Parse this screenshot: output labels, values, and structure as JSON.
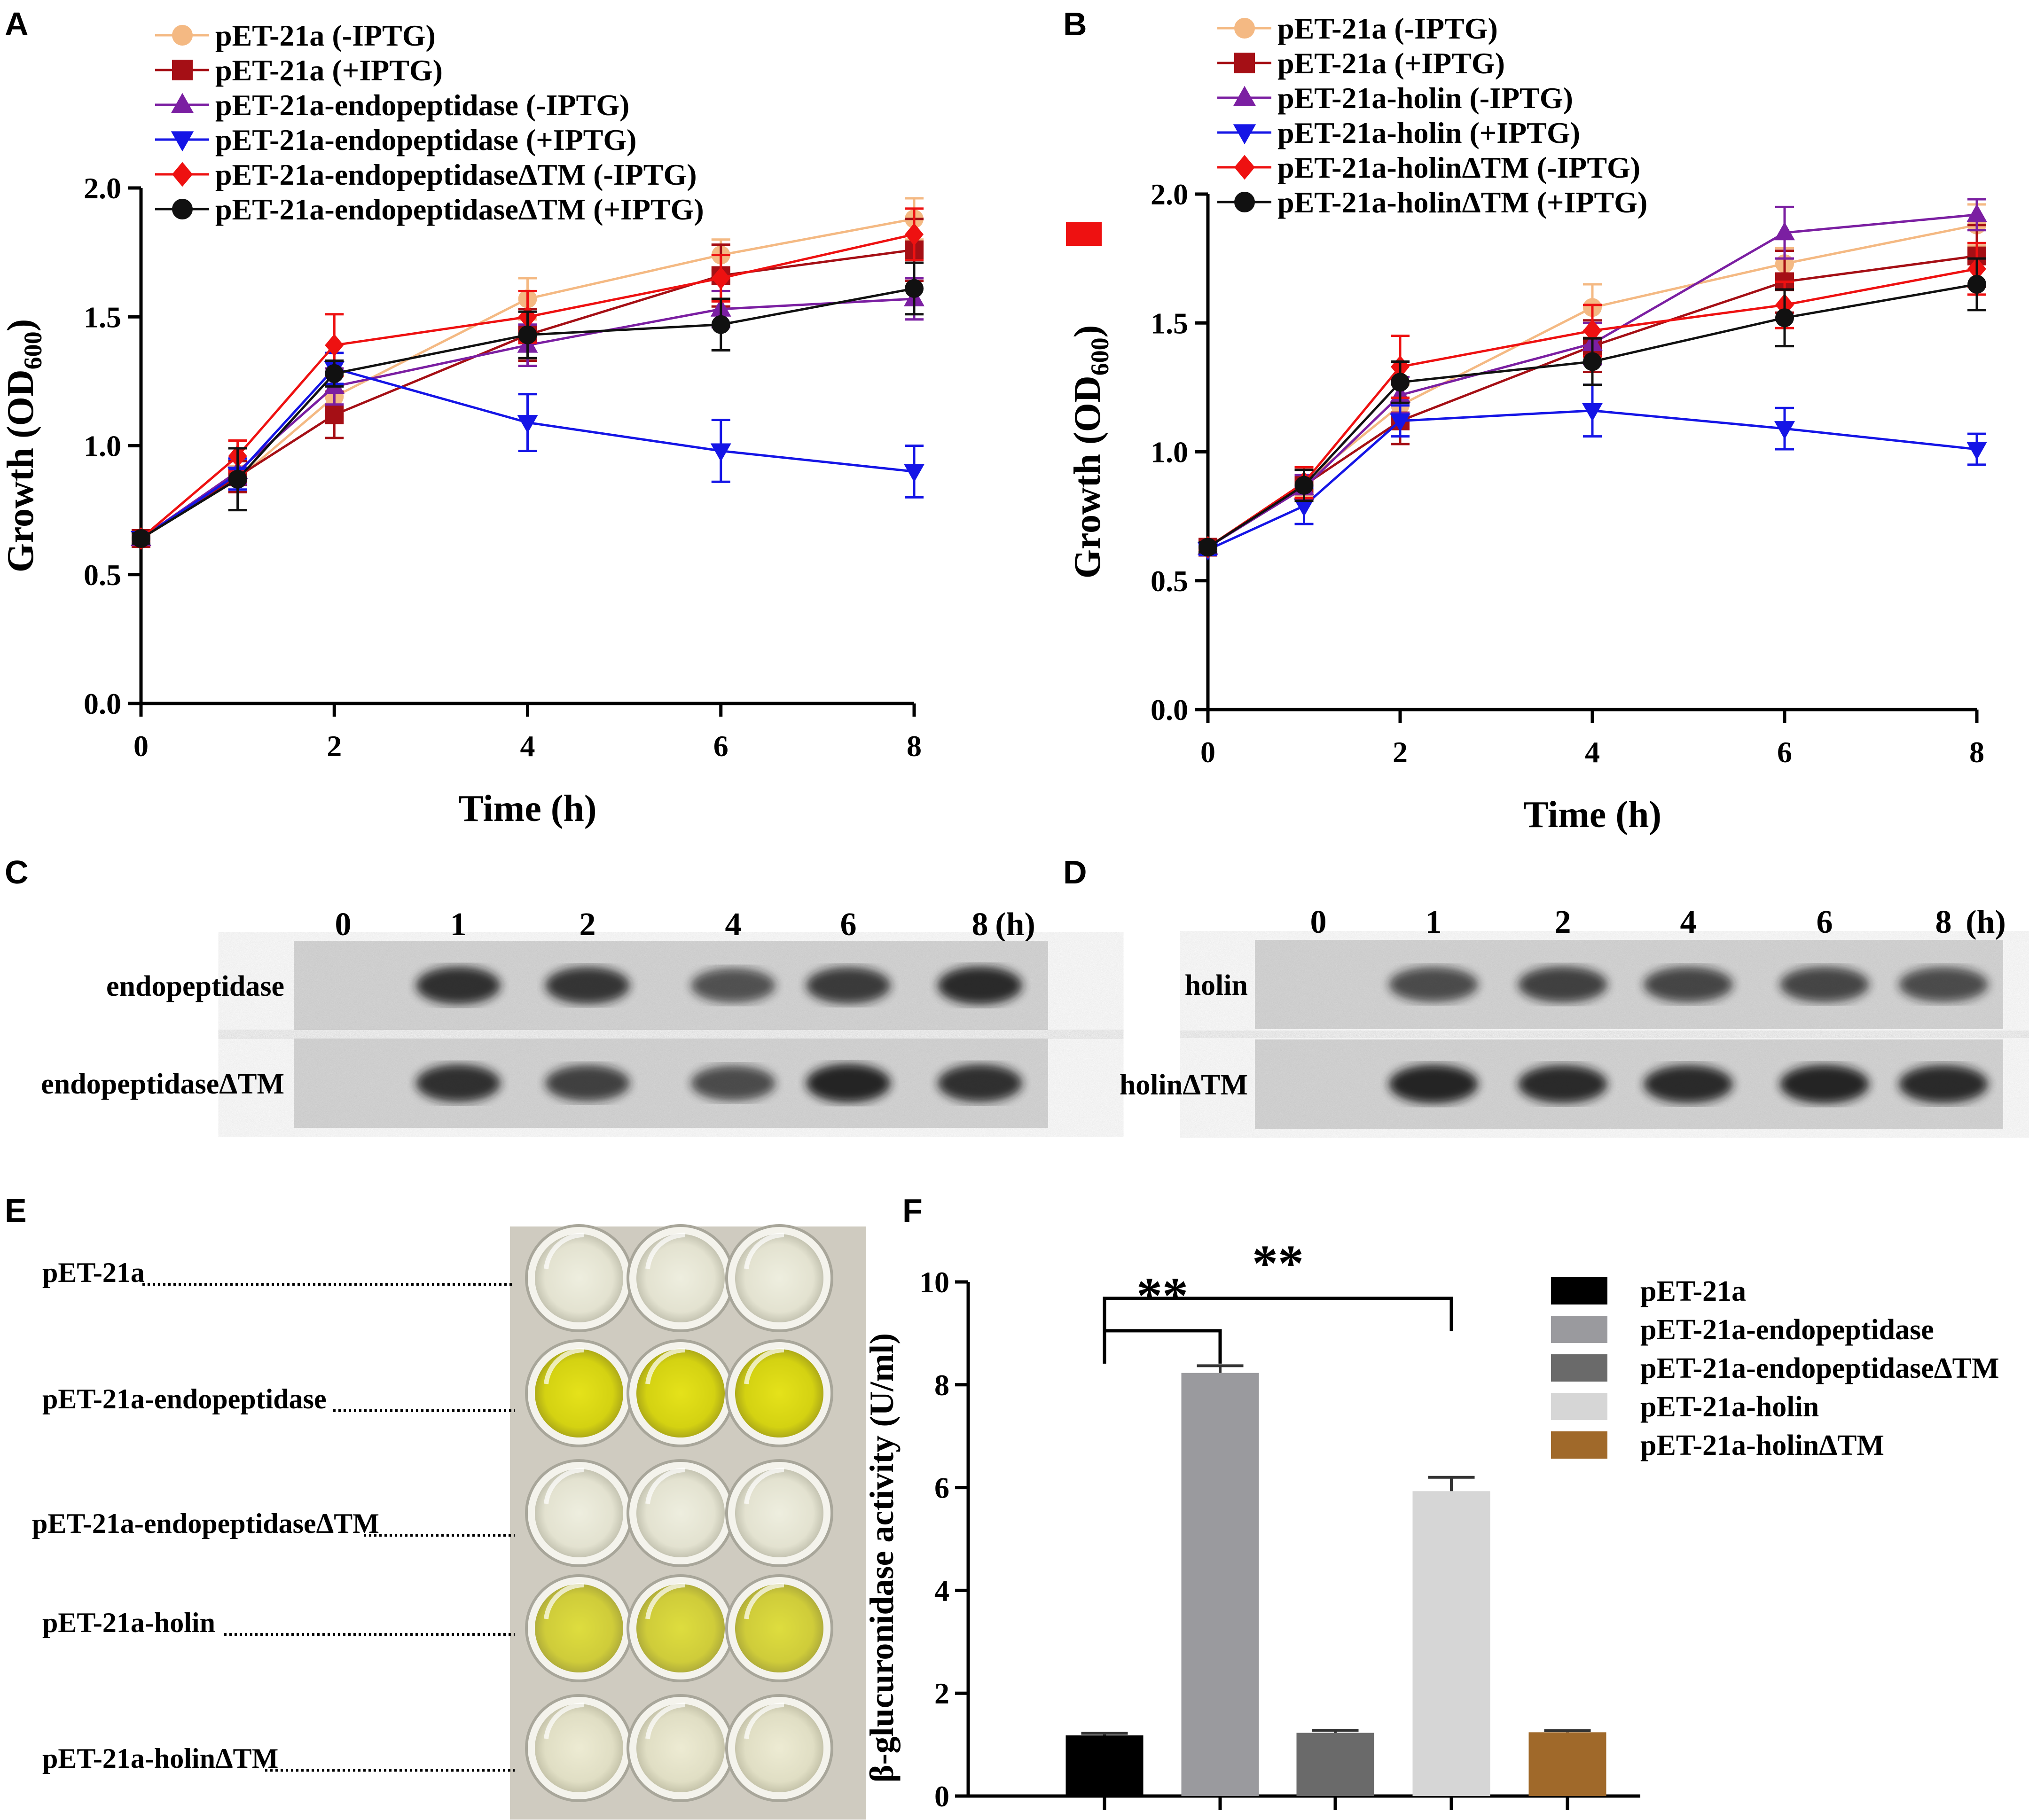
{
  "panel_labels": {
    "a": "A",
    "b": "B",
    "c": "C",
    "d": "D",
    "e": "E",
    "f": "F"
  },
  "colors": {
    "peach": "#F4B983",
    "darkred": "#A50F15",
    "purple": "#7B1FA2",
    "blue": "#1515E6",
    "red": "#EE1111",
    "black": "#111111",
    "bar_black": "#000000",
    "bar_gray": "#9A9A9E",
    "bar_dark": "#6A6A6A",
    "bar_light": "#D6D6D6",
    "bar_brown": "#A0692A",
    "red_square": "#EE1111"
  },
  "chart_data": [
    {
      "id": "A",
      "type": "line",
      "xlabel": "Time (h)",
      "ylabel_main": "Growth (OD",
      "ylabel_sub": "600",
      "ylabel_close": ")",
      "xlim": [
        0,
        8
      ],
      "ylim": [
        0,
        2
      ],
      "xticks": [
        "0",
        "2",
        "4",
        "6",
        "8"
      ],
      "yticks": [
        "0.0",
        "0.5",
        "1.0",
        "1.5",
        "2.0"
      ],
      "x": [
        0,
        1,
        2,
        4,
        6,
        8
      ],
      "series": [
        {
          "name": "pET-21a (-IPTG)",
          "color": "#F4B983",
          "marker": "circle",
          "values": [
            0.64,
            0.87,
            1.19,
            1.57,
            1.74,
            1.88
          ],
          "err": [
            0.02,
            0.05,
            0.08,
            0.08,
            0.06,
            0.08
          ]
        },
        {
          "name": "pET-21a (+IPTG)",
          "color": "#A50F15",
          "marker": "square",
          "values": [
            0.64,
            0.88,
            1.12,
            1.43,
            1.66,
            1.76
          ],
          "err": [
            0.02,
            0.06,
            0.09,
            0.1,
            0.12,
            0.12
          ]
        },
        {
          "name": "pET-21a-endopeptidase (-IPTG)",
          "color": "#7B1FA2",
          "marker": "triangle-up",
          "values": [
            0.64,
            0.9,
            1.23,
            1.39,
            1.53,
            1.57
          ],
          "err": [
            0.02,
            0.05,
            0.07,
            0.08,
            0.07,
            0.08
          ]
        },
        {
          "name": "pET-21a-endopeptidase (+IPTG)",
          "color": "#1515E6",
          "marker": "triangle-down",
          "values": [
            0.64,
            0.89,
            1.3,
            1.09,
            0.98,
            0.9
          ],
          "err": [
            0.02,
            0.06,
            0.06,
            0.11,
            0.12,
            0.1
          ]
        },
        {
          "name": "pET-21a-endopeptidaseΔTM (-IPTG)",
          "color": "#EE1111",
          "marker": "diamond",
          "values": [
            0.64,
            0.96,
            1.39,
            1.5,
            1.65,
            1.82
          ],
          "err": [
            0.02,
            0.06,
            0.12,
            0.1,
            0.09,
            0.1
          ]
        },
        {
          "name": "pET-21a-endopeptidaseΔTM (+IPTG)",
          "color": "#111111",
          "marker": "circle",
          "values": [
            0.64,
            0.87,
            1.28,
            1.43,
            1.47,
            1.61
          ],
          "err": [
            0.02,
            0.12,
            0.05,
            0.09,
            0.1,
            0.1
          ]
        }
      ]
    },
    {
      "id": "B",
      "type": "line",
      "xlabel": "Time (h)",
      "ylabel_main": "Growth (OD",
      "ylabel_sub": "600",
      "ylabel_close": ")",
      "xlim": [
        0,
        8
      ],
      "ylim": [
        0,
        2
      ],
      "xticks": [
        "0",
        "2",
        "4",
        "6",
        "8"
      ],
      "yticks": [
        "0.0",
        "0.5",
        "1.0",
        "1.5",
        "2.0"
      ],
      "x": [
        0,
        1,
        2,
        4,
        6,
        8
      ],
      "series": [
        {
          "name": "pET-21a (-IPTG)",
          "color": "#F4B983",
          "marker": "circle",
          "values": [
            0.63,
            0.88,
            1.18,
            1.56,
            1.73,
            1.88
          ],
          "err": [
            0.02,
            0.05,
            0.08,
            0.09,
            0.06,
            0.08
          ]
        },
        {
          "name": "pET-21a (+IPTG)",
          "color": "#A50F15",
          "marker": "square",
          "values": [
            0.63,
            0.87,
            1.12,
            1.41,
            1.66,
            1.76
          ],
          "err": [
            0.02,
            0.06,
            0.09,
            0.1,
            0.12,
            0.12
          ]
        },
        {
          "name": "pET-21a-holin (-IPTG)",
          "color": "#7B1FA2",
          "marker": "triangle-up",
          "values": [
            0.63,
            0.86,
            1.22,
            1.42,
            1.85,
            1.92
          ],
          "err": [
            0.02,
            0.05,
            0.07,
            0.08,
            0.1,
            0.06
          ]
        },
        {
          "name": "pET-21a-holin (+IPTG)",
          "color": "#1515E6",
          "marker": "triangle-down",
          "values": [
            0.62,
            0.79,
            1.12,
            1.16,
            1.09,
            1.01
          ],
          "err": [
            0.02,
            0.07,
            0.06,
            0.1,
            0.08,
            0.06
          ]
        },
        {
          "name": "pET-21a-holinΔTM (-IPTG)",
          "color": "#EE1111",
          "marker": "diamond",
          "values": [
            0.63,
            0.88,
            1.33,
            1.47,
            1.57,
            1.71
          ],
          "err": [
            0.02,
            0.06,
            0.12,
            0.1,
            0.09,
            0.1
          ]
        },
        {
          "name": "pET-21a-holinΔTM (+IPTG)",
          "color": "#111111",
          "marker": "circle",
          "values": [
            0.63,
            0.87,
            1.27,
            1.35,
            1.52,
            1.65
          ],
          "err": [
            0.02,
            0.06,
            0.08,
            0.09,
            0.11,
            0.1
          ]
        }
      ]
    },
    {
      "id": "F",
      "type": "bar",
      "ylabel": "β-glucuronidase activity (U/ml)",
      "ylim": [
        0,
        10
      ],
      "yticks": [
        "0",
        "2",
        "4",
        "6",
        "8",
        "10"
      ],
      "categories": [
        "pET-21a",
        "pET-21a-endopeptidase",
        "pET-21a-endopeptidaseΔTM",
        "pET-21a-holin",
        "pET-21a-holinΔTM"
      ],
      "values": [
        1.18,
        8.23,
        1.23,
        5.93,
        1.24
      ],
      "err": [
        0.04,
        0.14,
        0.05,
        0.27,
        0.03
      ],
      "colors": [
        "#000000",
        "#9A9A9E",
        "#6A6A6A",
        "#D6D6D6",
        "#A0692A"
      ],
      "significance": [
        {
          "from": 0,
          "to": 1,
          "label": "**"
        },
        {
          "from": 0,
          "to": 3,
          "label": "**"
        }
      ]
    }
  ],
  "blot_c": {
    "lanes": [
      "0",
      "1",
      "2",
      "4",
      "6",
      "8"
    ],
    "unit": "(h)",
    "rows": [
      {
        "label": "endopeptidase",
        "intensity": [
          0,
          0.85,
          0.8,
          0.55,
          0.75,
          0.9
        ]
      },
      {
        "label": "endopeptidaseΔTM",
        "intensity": [
          0,
          0.85,
          0.7,
          0.6,
          0.95,
          0.85
        ]
      }
    ]
  },
  "blot_d": {
    "lanes": [
      "0",
      "1",
      "2",
      "4",
      "6",
      "8"
    ],
    "unit": "(h)",
    "rows": [
      {
        "label": "holin",
        "intensity": [
          0,
          0.6,
          0.7,
          0.65,
          0.65,
          0.6
        ]
      },
      {
        "label": "holinΔTM",
        "intensity": [
          0,
          0.95,
          0.9,
          0.9,
          0.95,
          0.9
        ]
      }
    ]
  },
  "plate_e": {
    "rows": [
      {
        "label": "pET-21a",
        "yellow": 0
      },
      {
        "label": "pET-21a-endopeptidase",
        "yellow": 1
      },
      {
        "label": "pET-21a-endopeptidaseΔTM",
        "yellow": 0
      },
      {
        "label": "pET-21a-holin",
        "yellow": 0.75
      },
      {
        "label": "pET-21a-holinΔTM",
        "yellow": 0.05
      }
    ]
  }
}
